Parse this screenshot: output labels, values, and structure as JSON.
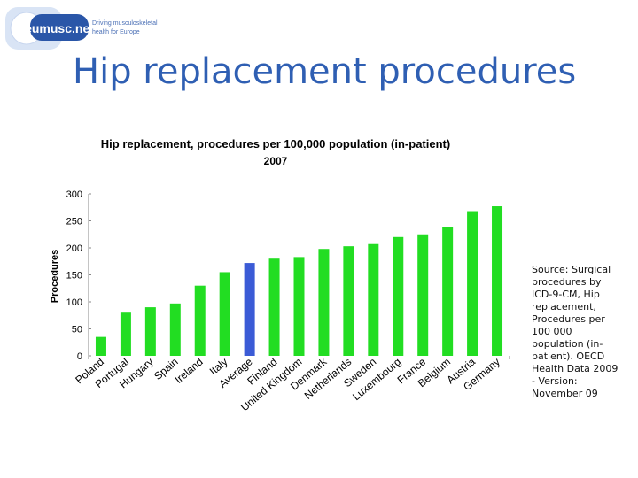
{
  "logo": {
    "name": "eumusc.net",
    "tagline_line1": "Driving musculoskeletal",
    "tagline_line2": "health for Europe"
  },
  "slide": {
    "title": "Hip replacement procedures",
    "source_note": "Source: Surgical procedures by ICD-9-CM, Hip replacement, Procedures per 100 000 population (in-patient). OECD Health Data 2009 - Version: November 09"
  },
  "colors": {
    "title": "#2f5fb3",
    "bar": "#22dd22",
    "highlight": "#3b5bd6"
  },
  "chart_data": {
    "type": "bar",
    "title": "Hip replacement, procedures per 100,000 population (in-patient)",
    "subtitle": "2007",
    "ylabel": "Procedures",
    "xlabel": "",
    "ylim": [
      0,
      300
    ],
    "yticks": [
      0,
      50,
      100,
      150,
      200,
      250,
      300
    ],
    "grid": false,
    "highlight_category": "Average",
    "categories": [
      "Poland",
      "Portugal",
      "Hungary",
      "Spain",
      "Ireland",
      "Italy",
      "Average",
      "Finland",
      "United Kingdom",
      "Denmark",
      "Netherlands",
      "Sweden",
      "Luxembourg",
      "France",
      "Belgium",
      "Austria",
      "Germany"
    ],
    "values": [
      35,
      80,
      90,
      97,
      130,
      155,
      172,
      180,
      183,
      198,
      203,
      207,
      220,
      225,
      238,
      268,
      277
    ]
  }
}
